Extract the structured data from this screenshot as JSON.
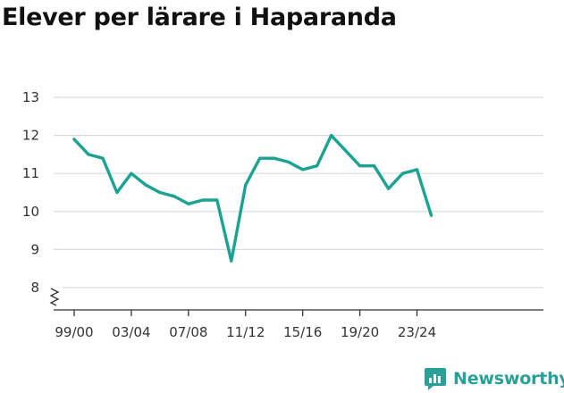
{
  "title": "Elever per lärare i Haparanda",
  "brand": {
    "name": "Newsworthy",
    "icon": "newsworthy-logo-icon"
  },
  "colors": {
    "line": "#1aa393",
    "grid": "#d9d9d9",
    "axis": "#333333",
    "brand": "#2aa198"
  },
  "chart_data": {
    "type": "line",
    "title": "Elever per lärare i Haparanda",
    "xlabel": "",
    "ylabel": "",
    "ylim": [
      8,
      13
    ],
    "y_axis_break": true,
    "grid": true,
    "yticks": [
      13,
      12,
      11,
      10,
      9,
      8
    ],
    "xticks": [
      "99/00",
      "03/04",
      "07/08",
      "11/12",
      "15/16",
      "19/20",
      "23/24"
    ],
    "x": [
      "99/00",
      "00/01",
      "01/02",
      "02/03",
      "03/04",
      "04/05",
      "05/06",
      "06/07",
      "07/08",
      "08/09",
      "09/10",
      "10/11",
      "11/12",
      "12/13",
      "13/14",
      "14/15",
      "15/16",
      "16/17",
      "17/18",
      "18/19",
      "19/20",
      "20/21",
      "21/22",
      "22/23",
      "23/24",
      "24/25"
    ],
    "series": [
      {
        "values": [
          11.9,
          11.5,
          11.4,
          10.5,
          11.0,
          10.7,
          10.5,
          10.4,
          10.2,
          10.3,
          10.3,
          8.7,
          10.7,
          11.4,
          11.4,
          11.3,
          11.1,
          11.2,
          12.0,
          11.6,
          11.2,
          11.2,
          10.6,
          11.0,
          11.1,
          9.9
        ]
      }
    ]
  }
}
